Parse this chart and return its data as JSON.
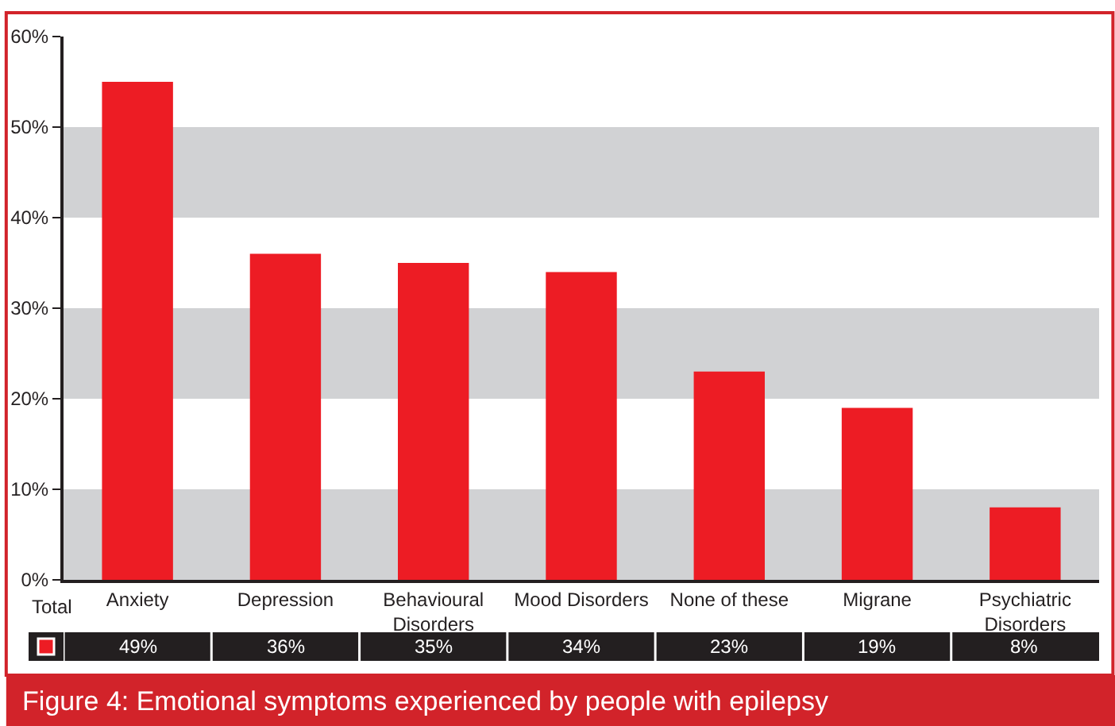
{
  "chart_data": {
    "type": "bar",
    "title": "Figure 4: Emotional symptoms experienced by people with epilepsy",
    "categories": [
      "Anxiety",
      "Depression",
      "Behavioural Disorders",
      "Mood Disorders",
      "None of these",
      "Migrane",
      "Psychiatric Disorders"
    ],
    "series": [
      {
        "name": "Total",
        "color": "#ed1c24",
        "values": [
          55,
          36,
          35,
          34,
          23,
          19,
          8
        ]
      }
    ],
    "value_labels": [
      "49%",
      "36%",
      "35%",
      "34%",
      "23%",
      "19%",
      "8%"
    ],
    "ylim": [
      0,
      60
    ],
    "yticks": [
      {
        "value": 0,
        "label": "0%"
      },
      {
        "value": 10,
        "label": "10%"
      },
      {
        "value": 20,
        "label": "20%"
      },
      {
        "value": 30,
        "label": "30%"
      },
      {
        "value": 40,
        "label": "40%"
      },
      {
        "value": 50,
        "label": "50%"
      },
      {
        "value": 60,
        "label": "60%"
      }
    ],
    "bands": [
      {
        "axis": "y",
        "from": 0,
        "to": 10,
        "color": "#d1d2d4"
      },
      {
        "axis": "y",
        "from": 20,
        "to": 30,
        "color": "#d1d2d4"
      },
      {
        "axis": "y",
        "from": 40,
        "to": 50,
        "color": "#d1d2d4"
      }
    ],
    "grid": false,
    "legend": "bottom left"
  }
}
